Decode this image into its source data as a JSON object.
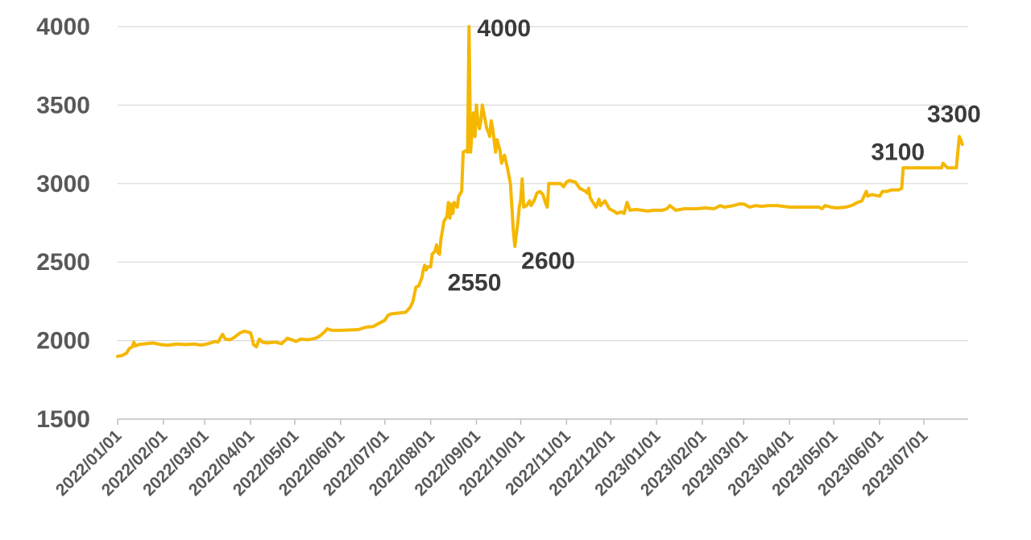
{
  "chart_data": {
    "type": "line",
    "title": "",
    "xlabel": "",
    "ylabel": "",
    "ylim": [
      1500,
      4000
    ],
    "yticks": [
      1500,
      2000,
      2500,
      3000,
      3500,
      4000
    ],
    "xticks": [
      "2022/01/01",
      "2022/02/01",
      "2022/03/01",
      "2022/04/01",
      "2022/05/01",
      "2022/06/01",
      "2022/07/01",
      "2022/08/01",
      "2022/09/01",
      "2022/10/01",
      "2022/11/01",
      "2022/12/01",
      "2023/01/01",
      "2023/02/01",
      "2023/03/01",
      "2023/04/01",
      "2023/05/01",
      "2023/06/01",
      "2023/07/01"
    ],
    "xlim": [
      "2022/01/01",
      "2023/07/31"
    ],
    "grid": true,
    "line_color": "#F5B700",
    "series": [
      {
        "points": [
          [
            "2022/01/01",
            1900
          ],
          [
            "2022/01/04",
            1905
          ],
          [
            "2022/01/07",
            1920
          ],
          [
            "2022/01/09",
            1950
          ],
          [
            "2022/01/11",
            1960
          ],
          [
            "2022/01/12",
            1990
          ],
          [
            "2022/01/13",
            1965
          ],
          [
            "2022/01/15",
            1975
          ],
          [
            "2022/01/20",
            1980
          ],
          [
            "2022/01/25",
            1985
          ],
          [
            "2022/01/30",
            1975
          ],
          [
            "2022/02/04",
            1970
          ],
          [
            "2022/02/10",
            1978
          ],
          [
            "2022/02/16",
            1975
          ],
          [
            "2022/02/22",
            1978
          ],
          [
            "2022/02/26",
            1972
          ],
          [
            "2022/03/01",
            1975
          ],
          [
            "2022/03/05",
            1985
          ],
          [
            "2022/03/08",
            1995
          ],
          [
            "2022/03/10",
            1990
          ],
          [
            "2022/03/13",
            2040
          ],
          [
            "2022/03/15",
            2010
          ],
          [
            "2022/03/18",
            2005
          ],
          [
            "2022/03/21",
            2020
          ],
          [
            "2022/03/25",
            2050
          ],
          [
            "2022/03/28",
            2060
          ],
          [
            "2022/04/01",
            2050
          ],
          [
            "2022/04/02",
            2020
          ],
          [
            "2022/04/03",
            1975
          ],
          [
            "2022/04/05",
            1960
          ],
          [
            "2022/04/07",
            2010
          ],
          [
            "2022/04/09",
            1990
          ],
          [
            "2022/04/12",
            1985
          ],
          [
            "2022/04/18",
            1990
          ],
          [
            "2022/04/22",
            1980
          ],
          [
            "2022/04/26",
            2015
          ],
          [
            "2022/04/29",
            2005
          ],
          [
            "2022/05/02",
            1995
          ],
          [
            "2022/05/05",
            2010
          ],
          [
            "2022/05/10",
            2005
          ],
          [
            "2022/05/15",
            2015
          ],
          [
            "2022/05/18",
            2030
          ],
          [
            "2022/05/21",
            2055
          ],
          [
            "2022/05/23",
            2075
          ],
          [
            "2022/05/26",
            2065
          ],
          [
            "2022/06/01",
            2065
          ],
          [
            "2022/06/08",
            2068
          ],
          [
            "2022/06/13",
            2070
          ],
          [
            "2022/06/18",
            2085
          ],
          [
            "2022/06/23",
            2090
          ],
          [
            "2022/06/27",
            2110
          ],
          [
            "2022/07/01",
            2130
          ],
          [
            "2022/07/03",
            2160
          ],
          [
            "2022/07/05",
            2170
          ],
          [
            "2022/07/10",
            2175
          ],
          [
            "2022/07/15",
            2180
          ],
          [
            "2022/07/18",
            2210
          ],
          [
            "2022/07/20",
            2250
          ],
          [
            "2022/07/22",
            2340
          ],
          [
            "2022/07/24",
            2350
          ],
          [
            "2022/07/26",
            2400
          ],
          [
            "2022/07/27",
            2450
          ],
          [
            "2022/07/28",
            2480
          ],
          [
            "2022/07/29",
            2450
          ],
          [
            "2022/07/30",
            2470
          ],
          [
            "2022/08/01",
            2470
          ],
          [
            "2022/08/02",
            2550
          ],
          [
            "2022/08/04",
            2570
          ],
          [
            "2022/08/05",
            2610
          ],
          [
            "2022/08/06",
            2560
          ],
          [
            "2022/08/07",
            2550
          ],
          [
            "2022/08/08",
            2650
          ],
          [
            "2022/08/09",
            2700
          ],
          [
            "2022/08/10",
            2760
          ],
          [
            "2022/08/12",
            2790
          ],
          [
            "2022/08/13",
            2880
          ],
          [
            "2022/08/14",
            2780
          ],
          [
            "2022/08/15",
            2870
          ],
          [
            "2022/08/16",
            2810
          ],
          [
            "2022/08/17",
            2880
          ],
          [
            "2022/08/19",
            2850
          ],
          [
            "2022/08/20",
            2920
          ],
          [
            "2022/08/22",
            2950
          ],
          [
            "2022/08/23",
            3200
          ],
          [
            "2022/08/25",
            3210
          ],
          [
            "2022/08/26",
            3200
          ],
          [
            "2022/08/27",
            4000
          ],
          [
            "2022/08/28",
            3200
          ],
          [
            "2022/08/30",
            3450
          ],
          [
            "2022/08/31",
            3300
          ],
          [
            "2022/09/01",
            3500
          ],
          [
            "2022/09/02",
            3400
          ],
          [
            "2022/09/03",
            3350
          ],
          [
            "2022/09/04",
            3400
          ],
          [
            "2022/09/05",
            3500
          ],
          [
            "2022/09/07",
            3400
          ],
          [
            "2022/09/08",
            3350
          ],
          [
            "2022/09/09",
            3330
          ],
          [
            "2022/09/10",
            3300
          ],
          [
            "2022/09/11",
            3400
          ],
          [
            "2022/09/12",
            3350
          ],
          [
            "2022/09/14",
            3200
          ],
          [
            "2022/09/15",
            3280
          ],
          [
            "2022/09/17",
            3210
          ],
          [
            "2022/09/18",
            3130
          ],
          [
            "2022/09/20",
            3180
          ],
          [
            "2022/09/22",
            3100
          ],
          [
            "2022/09/24",
            3000
          ],
          [
            "2022/09/26",
            2700
          ],
          [
            "2022/09/27",
            2600
          ],
          [
            "2022/09/29",
            2750
          ],
          [
            "2022/09/30",
            2850
          ],
          [
            "2022/10/01",
            2900
          ],
          [
            "2022/10/02",
            3030
          ],
          [
            "2022/10/03",
            2850
          ],
          [
            "2022/10/05",
            2860
          ],
          [
            "2022/10/07",
            2890
          ],
          [
            "2022/10/08",
            2860
          ],
          [
            "2022/10/10",
            2890
          ],
          [
            "2022/10/12",
            2940
          ],
          [
            "2022/10/14",
            2950
          ],
          [
            "2022/10/16",
            2930
          ],
          [
            "2022/10/18",
            2870
          ],
          [
            "2022/10/19",
            2850
          ],
          [
            "2022/10/20",
            3000
          ],
          [
            "2022/10/25",
            3000
          ],
          [
            "2022/10/28",
            3000
          ],
          [
            "2022/10/30",
            2980
          ],
          [
            "2022/11/01",
            3010
          ],
          [
            "2022/11/03",
            3020
          ],
          [
            "2022/11/07",
            3010
          ],
          [
            "2022/11/10",
            2970
          ],
          [
            "2022/11/14",
            2950
          ],
          [
            "2022/11/15",
            2940
          ],
          [
            "2022/11/16",
            2970
          ],
          [
            "2022/11/17",
            2910
          ],
          [
            "2022/11/19",
            2880
          ],
          [
            "2022/11/21",
            2850
          ],
          [
            "2022/11/23",
            2900
          ],
          [
            "2022/11/24",
            2860
          ],
          [
            "2022/11/27",
            2890
          ],
          [
            "2022/11/30",
            2840
          ],
          [
            "2022/12/04",
            2820
          ],
          [
            "2022/12/05",
            2810
          ],
          [
            "2022/12/08",
            2820
          ],
          [
            "2022/12/10",
            2810
          ],
          [
            "2022/12/12",
            2880
          ],
          [
            "2022/12/14",
            2830
          ],
          [
            "2022/12/18",
            2835
          ],
          [
            "2022/12/22",
            2830
          ],
          [
            "2022/12/26",
            2825
          ],
          [
            "2022/12/30",
            2830
          ],
          [
            "2023/01/05",
            2830
          ],
          [
            "2023/01/08",
            2840
          ],
          [
            "2023/01/10",
            2860
          ],
          [
            "2023/01/14",
            2830
          ],
          [
            "2023/01/20",
            2840
          ],
          [
            "2023/01/28",
            2840
          ],
          [
            "2023/02/03",
            2845
          ],
          [
            "2023/02/09",
            2840
          ],
          [
            "2023/02/13",
            2860
          ],
          [
            "2023/02/16",
            2850
          ],
          [
            "2023/02/22",
            2860
          ],
          [
            "2023/02/26",
            2870
          ],
          [
            "2023/03/01",
            2870
          ],
          [
            "2023/03/05",
            2850
          ],
          [
            "2023/03/09",
            2860
          ],
          [
            "2023/03/13",
            2855
          ],
          [
            "2023/03/18",
            2860
          ],
          [
            "2023/03/24",
            2860
          ],
          [
            "2023/04/01",
            2850
          ],
          [
            "2023/04/09",
            2850
          ],
          [
            "2023/04/17",
            2850
          ],
          [
            "2023/04/21",
            2850
          ],
          [
            "2023/04/23",
            2840
          ],
          [
            "2023/04/25",
            2860
          ],
          [
            "2023/04/29",
            2850
          ],
          [
            "2023/05/03",
            2845
          ],
          [
            "2023/05/09",
            2850
          ],
          [
            "2023/05/13",
            2860
          ],
          [
            "2023/05/17",
            2880
          ],
          [
            "2023/05/20",
            2890
          ],
          [
            "2023/05/23",
            2950
          ],
          [
            "2023/05/24",
            2920
          ],
          [
            "2023/05/27",
            2930
          ],
          [
            "2023/06/01",
            2920
          ],
          [
            "2023/06/03",
            2950
          ],
          [
            "2023/06/06",
            2950
          ],
          [
            "2023/06/09",
            2960
          ],
          [
            "2023/06/14",
            2960
          ],
          [
            "2023/06/16",
            2970
          ],
          [
            "2023/06/17",
            3100
          ],
          [
            "2023/06/25",
            3100
          ],
          [
            "2023/07/01",
            3100
          ],
          [
            "2023/07/08",
            3100
          ],
          [
            "2023/07/13",
            3100
          ],
          [
            "2023/07/14",
            3130
          ],
          [
            "2023/07/17",
            3100
          ],
          [
            "2023/07/21",
            3100
          ],
          [
            "2023/07/23",
            3100
          ],
          [
            "2023/07/25",
            3300
          ],
          [
            "2023/07/26",
            3280
          ],
          [
            "2023/07/27",
            3250
          ]
        ]
      }
    ],
    "annotations": [
      {
        "label": "4000",
        "x": "2022/08/27",
        "y": 4000
      },
      {
        "label": "2550",
        "x": "2022/08/07",
        "y": 2550
      },
      {
        "label": "2600",
        "x": "2022/09/27",
        "y": 2600
      },
      {
        "label": "3100",
        "x": "2023/06/17",
        "y": 3100
      },
      {
        "label": "3300",
        "x": "2023/07/25",
        "y": 3300
      }
    ]
  }
}
